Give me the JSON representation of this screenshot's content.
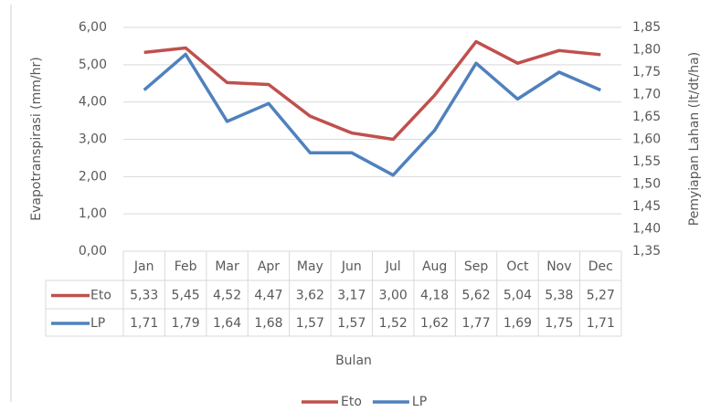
{
  "chart_data": {
    "type": "line",
    "categories": [
      "Jan",
      "Feb",
      "Mar",
      "Apr",
      "May",
      "Jun",
      "Jul",
      "Aug",
      "Sep",
      "Oct",
      "Nov",
      "Dec"
    ],
    "series": [
      {
        "name": "Eto",
        "color": "#c0504d",
        "values": [
          5.33,
          5.45,
          4.52,
          4.47,
          3.62,
          3.17,
          3.0,
          4.18,
          5.62,
          5.04,
          5.38,
          5.27
        ],
        "value_labels": [
          "5,33",
          "5,45",
          "4,52",
          "4,47",
          "3,62",
          "3,17",
          "3,00",
          "4,18",
          "5,62",
          "5,04",
          "5,38",
          "5,27"
        ]
      },
      {
        "name": "LP",
        "color": "#4f81bd",
        "axis": "y2",
        "values": [
          1.71,
          1.79,
          1.64,
          1.68,
          1.57,
          1.57,
          1.52,
          1.62,
          1.77,
          1.69,
          1.75,
          1.71
        ],
        "value_labels": [
          "1,71",
          "1,79",
          "1,64",
          "1,68",
          "1,57",
          "1,57",
          "1,52",
          "1,62",
          "1,77",
          "1,69",
          "1,75",
          "1,71"
        ]
      }
    ],
    "xlabel": "Bulan",
    "ylabel": "Evapotranspirasi (mm/hr)",
    "y2label": "Pemyiapan Lahan (lt/dt/ha)",
    "ylim": [
      0,
      6
    ],
    "yticks": [
      {
        "value": 0,
        "label": "0,00"
      },
      {
        "value": 1,
        "label": "1,00"
      },
      {
        "value": 2,
        "label": "2,00"
      },
      {
        "value": 3,
        "label": "3,00"
      },
      {
        "value": 4,
        "label": "4,00"
      },
      {
        "value": 5,
        "label": "5,00"
      },
      {
        "value": 6,
        "label": "6,00"
      }
    ],
    "y2lim": [
      1.35,
      1.85
    ],
    "y2ticks": [
      {
        "value": 1.35,
        "label": "1,35"
      },
      {
        "value": 1.4,
        "label": "1,40"
      },
      {
        "value": 1.45,
        "label": "1,45"
      },
      {
        "value": 1.5,
        "label": "1,50"
      },
      {
        "value": 1.55,
        "label": "1,55"
      },
      {
        "value": 1.6,
        "label": "1,60"
      },
      {
        "value": 1.65,
        "label": "1,65"
      },
      {
        "value": 1.7,
        "label": "1,70"
      },
      {
        "value": 1.75,
        "label": "1,75"
      },
      {
        "value": 1.8,
        "label": "1,80"
      },
      {
        "value": 1.85,
        "label": "1,85"
      }
    ],
    "grid": true,
    "legend": "bottom"
  }
}
